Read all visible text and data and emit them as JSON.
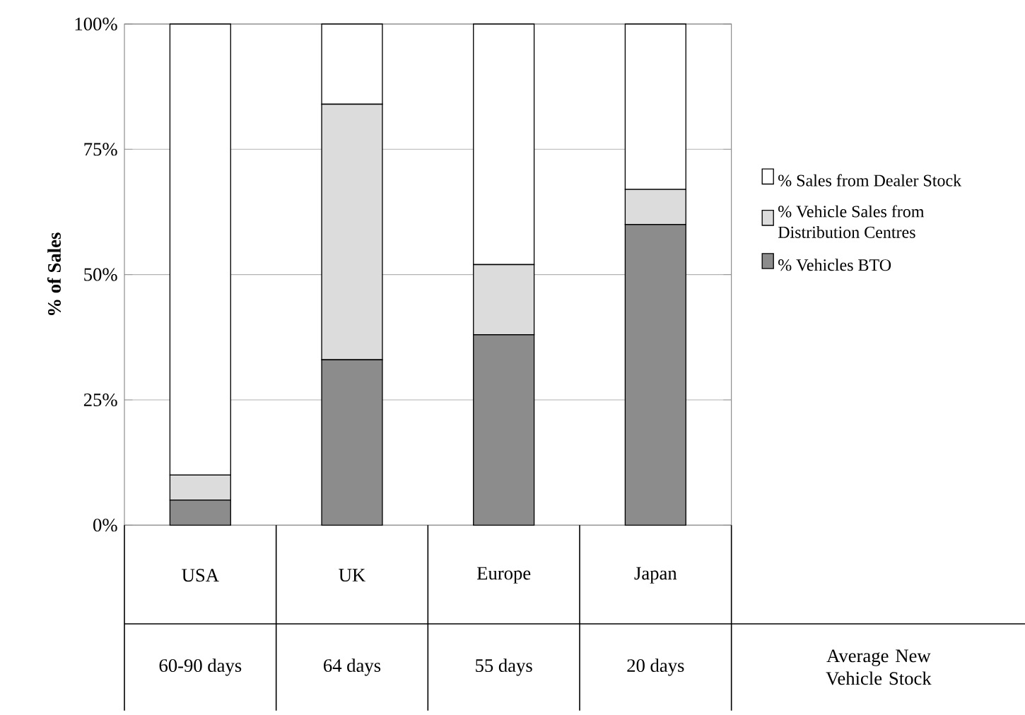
{
  "chart_data": {
    "type": "bar",
    "stacked": true,
    "ylabel": "% of Sales",
    "categories": [
      "USA",
      "UK",
      "Europe",
      "Japan"
    ],
    "series": [
      {
        "name": "% Vehicles BTO",
        "color": "#8c8c8c",
        "values": [
          5,
          33,
          38,
          60
        ]
      },
      {
        "name": "% Vehicle Sales from Distribution Centres",
        "color": "#dcdcdc",
        "values": [
          5,
          51,
          14,
          7
        ]
      },
      {
        "name": "% Sales from Dealer Stock",
        "color": "#ffffff",
        "values": [
          90,
          16,
          48,
          33
        ]
      }
    ],
    "ylim": [
      0,
      100
    ],
    "yticks": [
      {
        "value": 0,
        "label": "0%"
      },
      {
        "value": 25,
        "label": "25%"
      },
      {
        "value": 50,
        "label": "50%"
      },
      {
        "value": 75,
        "label": "75%"
      },
      {
        "value": 100,
        "label": "100%"
      }
    ],
    "grid": "y",
    "legend": "right",
    "annotations": [
      "60-90 days",
      "64 days",
      "55 days",
      "20 days",
      "Average New Vehicle Stock"
    ]
  }
}
